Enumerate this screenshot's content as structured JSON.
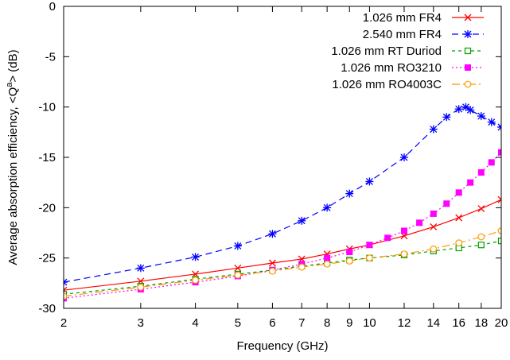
{
  "chart_data": {
    "type": "line",
    "title": "",
    "xlabel": "Frequency (GHz)",
    "ylabel": "Average absorption efficiency, <Q",
    "ylabel_sup": "a",
    "ylabel_tail": "> (dB)",
    "xscale": "log",
    "xlim": [
      2,
      20
    ],
    "ylim": [
      -30,
      0
    ],
    "xticks": [
      2,
      3,
      4,
      5,
      6,
      7,
      8,
      9,
      10,
      12,
      14,
      16,
      18,
      20
    ],
    "xtick_labels": [
      "2",
      "3",
      "4",
      "5",
      "6",
      "7",
      "8",
      "9",
      "10",
      "12",
      "14",
      "16",
      "18",
      "20"
    ],
    "yticks": [
      0,
      -5,
      -10,
      -15,
      -20,
      -25,
      -30
    ],
    "ytick_labels": [
      "0",
      "-5",
      "-10",
      "-15",
      "-20",
      "-25",
      "-30"
    ],
    "legend_position": "top-right",
    "grid": false,
    "series": [
      {
        "name": "1.026 mm FR4",
        "color": "#ff0000",
        "marker": "cross",
        "dash": "",
        "x": [
          2,
          3,
          4,
          5,
          6,
          7,
          8,
          9,
          10,
          12,
          14,
          16,
          18,
          20
        ],
        "y": [
          -28.2,
          -27.3,
          -26.6,
          -26.0,
          -25.5,
          -25.1,
          -24.6,
          -24.1,
          -23.7,
          -22.8,
          -21.9,
          -21.0,
          -20.1,
          -19.2
        ]
      },
      {
        "name": "2.540 mm FR4",
        "color": "#0000ff",
        "marker": "star",
        "dash": "8,5",
        "x": [
          2,
          3,
          4,
          5,
          6,
          7,
          8,
          9,
          10,
          12,
          14,
          15,
          16,
          16.6,
          17,
          18,
          19,
          20
        ],
        "y": [
          -27.4,
          -26.0,
          -24.9,
          -23.8,
          -22.6,
          -21.3,
          -20.0,
          -18.6,
          -17.4,
          -15.0,
          -12.2,
          -11.0,
          -10.2,
          -10.0,
          -10.3,
          -10.9,
          -11.5,
          -12.0
        ]
      },
      {
        "name": "1.026 mm RT Duriod",
        "color": "#00a000",
        "marker": "open-square",
        "dash": "4,4",
        "x": [
          2,
          3,
          4,
          5,
          6,
          7,
          8,
          9,
          10,
          12,
          14,
          16,
          18,
          20
        ],
        "y": [
          -28.6,
          -27.8,
          -27.1,
          -26.6,
          -26.2,
          -25.8,
          -25.5,
          -25.2,
          -25.0,
          -24.7,
          -24.3,
          -24.0,
          -23.7,
          -23.3
        ]
      },
      {
        "name": "1.026 mm RO3210",
        "color": "#ff00ff",
        "marker": "filled-square",
        "dash": "2,3",
        "x": [
          2,
          3,
          4,
          5,
          6,
          7,
          8,
          9,
          10,
          11,
          12,
          13,
          14,
          15,
          16,
          17,
          18,
          19,
          20
        ],
        "y": [
          -29.0,
          -28.1,
          -27.4,
          -26.8,
          -26.2,
          -25.6,
          -25.0,
          -24.4,
          -23.7,
          -23.0,
          -22.3,
          -21.5,
          -20.6,
          -19.6,
          -18.5,
          -17.5,
          -16.5,
          -15.5,
          -14.5
        ]
      },
      {
        "name": "1.026 mm RO4003C",
        "color": "#ff9900",
        "marker": "open-circle",
        "dash": "10,4,2,4",
        "x": [
          2,
          3,
          4,
          5,
          6,
          7,
          8,
          9,
          10,
          12,
          14,
          16,
          18,
          20
        ],
        "y": [
          -28.8,
          -27.9,
          -27.2,
          -26.7,
          -26.3,
          -25.9,
          -25.6,
          -25.3,
          -25.0,
          -24.6,
          -24.1,
          -23.5,
          -22.9,
          -22.3
        ]
      }
    ]
  }
}
